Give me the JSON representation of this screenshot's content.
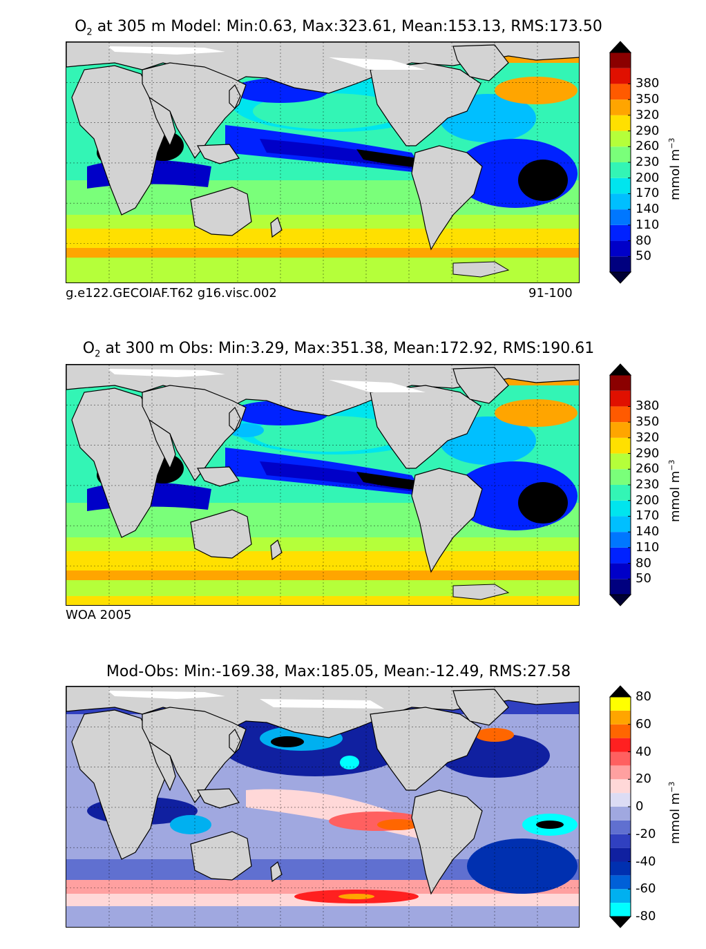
{
  "panels": [
    {
      "id": "model",
      "title": {
        "var": "O",
        "sub": "2",
        "text": " at 305 m Model: Min:0.63, Max:323.61, Mean:153.13, RMS:173.50"
      },
      "footer_left": "g.e122.GECOIAF.T62 g16.visc.002",
      "footer_right": "91-100",
      "colorbar": {
        "ticks": [
          "50",
          "80",
          "110",
          "140",
          "170",
          "200",
          "230",
          "260",
          "290",
          "320",
          "350",
          "380"
        ],
        "unit": "mmol m",
        "unit_exp": "−3",
        "colors": [
          "#00007f",
          "#0000c8",
          "#0022ff",
          "#0077ff",
          "#00bfff",
          "#00e5ee",
          "#33f5b5",
          "#7aff7a",
          "#b5ff3a",
          "#ffe000",
          "#ffa500",
          "#ff5a00",
          "#e01000",
          "#8b0000"
        ],
        "under": "#000033",
        "over": "#000000"
      },
      "palette": "abs"
    },
    {
      "id": "obs",
      "title": {
        "var": "O",
        "sub": "2",
        "text": " at 300 m Obs: Min:3.29, Max:351.38, Mean:172.92, RMS:190.61"
      },
      "footer_left": "WOA 2005",
      "footer_right": "",
      "colorbar": {
        "ticks": [
          "50",
          "80",
          "110",
          "140",
          "170",
          "200",
          "230",
          "260",
          "290",
          "320",
          "350",
          "380"
        ],
        "unit": "mmol m",
        "unit_exp": "−3",
        "colors": [
          "#00007f",
          "#0000c8",
          "#0022ff",
          "#0077ff",
          "#00bfff",
          "#00e5ee",
          "#33f5b5",
          "#7aff7a",
          "#b5ff3a",
          "#ffe000",
          "#ffa500",
          "#ff5a00",
          "#e01000",
          "#8b0000"
        ],
        "under": "#000033",
        "over": "#000000"
      },
      "palette": "abs"
    },
    {
      "id": "diff",
      "title": {
        "var": "",
        "sub": "",
        "text": "Mod-Obs: Min:-169.38, Max:185.05, Mean:-12.49, RMS:27.58"
      },
      "footer_left": "",
      "footer_right": "",
      "colorbar": {
        "ticks": [
          "-80",
          "-60",
          "-40",
          "-20",
          "0",
          "20",
          "40",
          "60",
          "80"
        ],
        "unit": "mmol m",
        "unit_exp": "−3",
        "colors": [
          "#00ffff",
          "#00b0f0",
          "#0060d8",
          "#0030b0",
          "#1020a0",
          "#3040c0",
          "#6070d0",
          "#a0a8e0",
          "#dcdcf4",
          "#ffd8d8",
          "#ffa0a0",
          "#ff6060",
          "#ff2020",
          "#ff6600",
          "#ffa500",
          "#ffff00"
        ],
        "under": "#000000",
        "over": "#000000"
      },
      "palette": "diff"
    }
  ]
}
